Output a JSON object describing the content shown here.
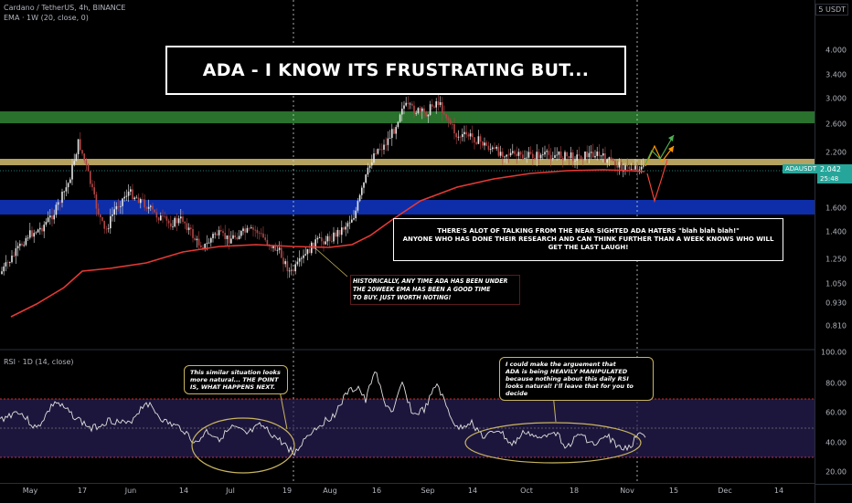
{
  "header": {
    "symbol_line": "Cardano / TetherUS, 4h, BINANCE",
    "ema_line": "EMA · 1W (20, close, 0)"
  },
  "title": "ADA - I KNOW ITS FRUSTRATING BUT...",
  "annotations": {
    "main_note": "THERE'S ALOT OF TALKING FROM THE NEAR SIGHTED ADA HATERS \"blah blah blah!\"\nANYONE WHO HAS DONE THEIR RESEARCH AND CAN THINK FURTHER THAN A WEEK KNOWS WHO WILL\nGET THE LAST LAUGH!",
    "ema_note": "HISTORICALLY, ANY TIME ADA HAS BEEN UNDER\nTHE 20WEEK EMA HAS BEEN A GOOD TIME\nTO BUY. JUST WORTH NOTING!",
    "rsi_note_left": "This similar situation looks\nmore natural... THE POINT\nIS, WHAT HAPPENS NEXT.",
    "rsi_note_right": "I could make the arguement that\nADA is being HEAVILY MANIPULATED\nbecause nothing about this daily RSI\nlooks natural! I'll leave that for you to decide"
  },
  "price_axis": {
    "currency": "USDT",
    "ticks": [
      "4.000",
      "3.400",
      "3.000",
      "2.600",
      "2.200",
      "1.600",
      "1.400",
      "1.250",
      "1.050",
      "0.930",
      "0.810"
    ],
    "current_symbol": "ADAUSDT",
    "current_price": "2.042",
    "countdown": "25:48"
  },
  "rsi": {
    "label": "RSI · 1D (14, close)",
    "ticks": [
      "100.00",
      "80.00",
      "60.00",
      "40.00",
      "20.00"
    ],
    "upper_band": 70,
    "lower_band": 30
  },
  "time_axis": {
    "ticks": [
      "May",
      "17",
      "Jun",
      "14",
      "Jul",
      "19",
      "Aug",
      "16",
      "Sep",
      "14",
      "Oct",
      "18",
      "Nov",
      "15",
      "Dec",
      "14"
    ]
  },
  "colors": {
    "background": "#000000",
    "candle_up": "#d9d9d9",
    "ema": "#e53935",
    "green_zone": "#2e7d32",
    "yellow_zone": "#c9b26a",
    "blue_zone": "#0d2ea8",
    "rsi_band": "#ff3b3b",
    "rsi_fill": "#2a1f55",
    "ellipse": "#c8b560",
    "arrow_green": "#4caf50",
    "arrow_orange": "#ff9800",
    "arrow_red": "#f44336"
  }
}
